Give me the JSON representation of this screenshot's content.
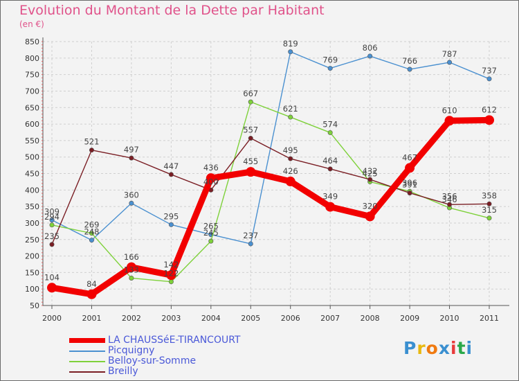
{
  "title": "Evolution du Montant de la Dette par Habitant",
  "unit_label": "(en €)",
  "logo": {
    "text": "Proxiti",
    "letter_colors": [
      "#3a8fd0",
      "#e8b810",
      "#f07a10",
      "#3a8fd0",
      "#e83b3b",
      "#2aa84a",
      "#3a8fd0"
    ]
  },
  "chart_data": {
    "type": "line",
    "x": [
      "2000",
      "2001",
      "2002",
      "2003",
      "2004",
      "2005",
      "2006",
      "2007",
      "2008",
      "2009",
      "2010",
      "2011"
    ],
    "ylim": [
      50,
      850
    ],
    "yticks": [
      50,
      100,
      150,
      200,
      250,
      300,
      350,
      400,
      450,
      500,
      550,
      600,
      650,
      700,
      750,
      800,
      850
    ],
    "grid": true,
    "legend_position": "bottom-left",
    "series": [
      {
        "name": "Picquigny",
        "color": "#4a90d0",
        "values": [
          309,
          248,
          360,
          295,
          265,
          237,
          819,
          769,
          806,
          766,
          787,
          737
        ]
      },
      {
        "name": "Belloy-sur-Somme",
        "color": "#7ed13a",
        "values": [
          294,
          269,
          133,
          122,
          245,
          667,
          621,
          574,
          425,
          396,
          346,
          315
        ]
      },
      {
        "name": "Breilly",
        "color": "#7a1e24",
        "values": [
          235,
          521,
          497,
          447,
          400,
          557,
          495,
          464,
          432,
          391,
          356,
          358
        ]
      },
      {
        "name": "LA CHAUSSéE-TIRANCOURT",
        "color": "#f20000",
        "values": [
          104,
          84,
          166,
          142,
          436,
          455,
          426,
          349,
          320,
          467,
          610,
          612
        ]
      }
    ],
    "legend_order": [
      "LA CHAUSSéE-TIRANCOURT",
      "Picquigny",
      "Belloy-sur-Somme",
      "Breilly"
    ]
  }
}
